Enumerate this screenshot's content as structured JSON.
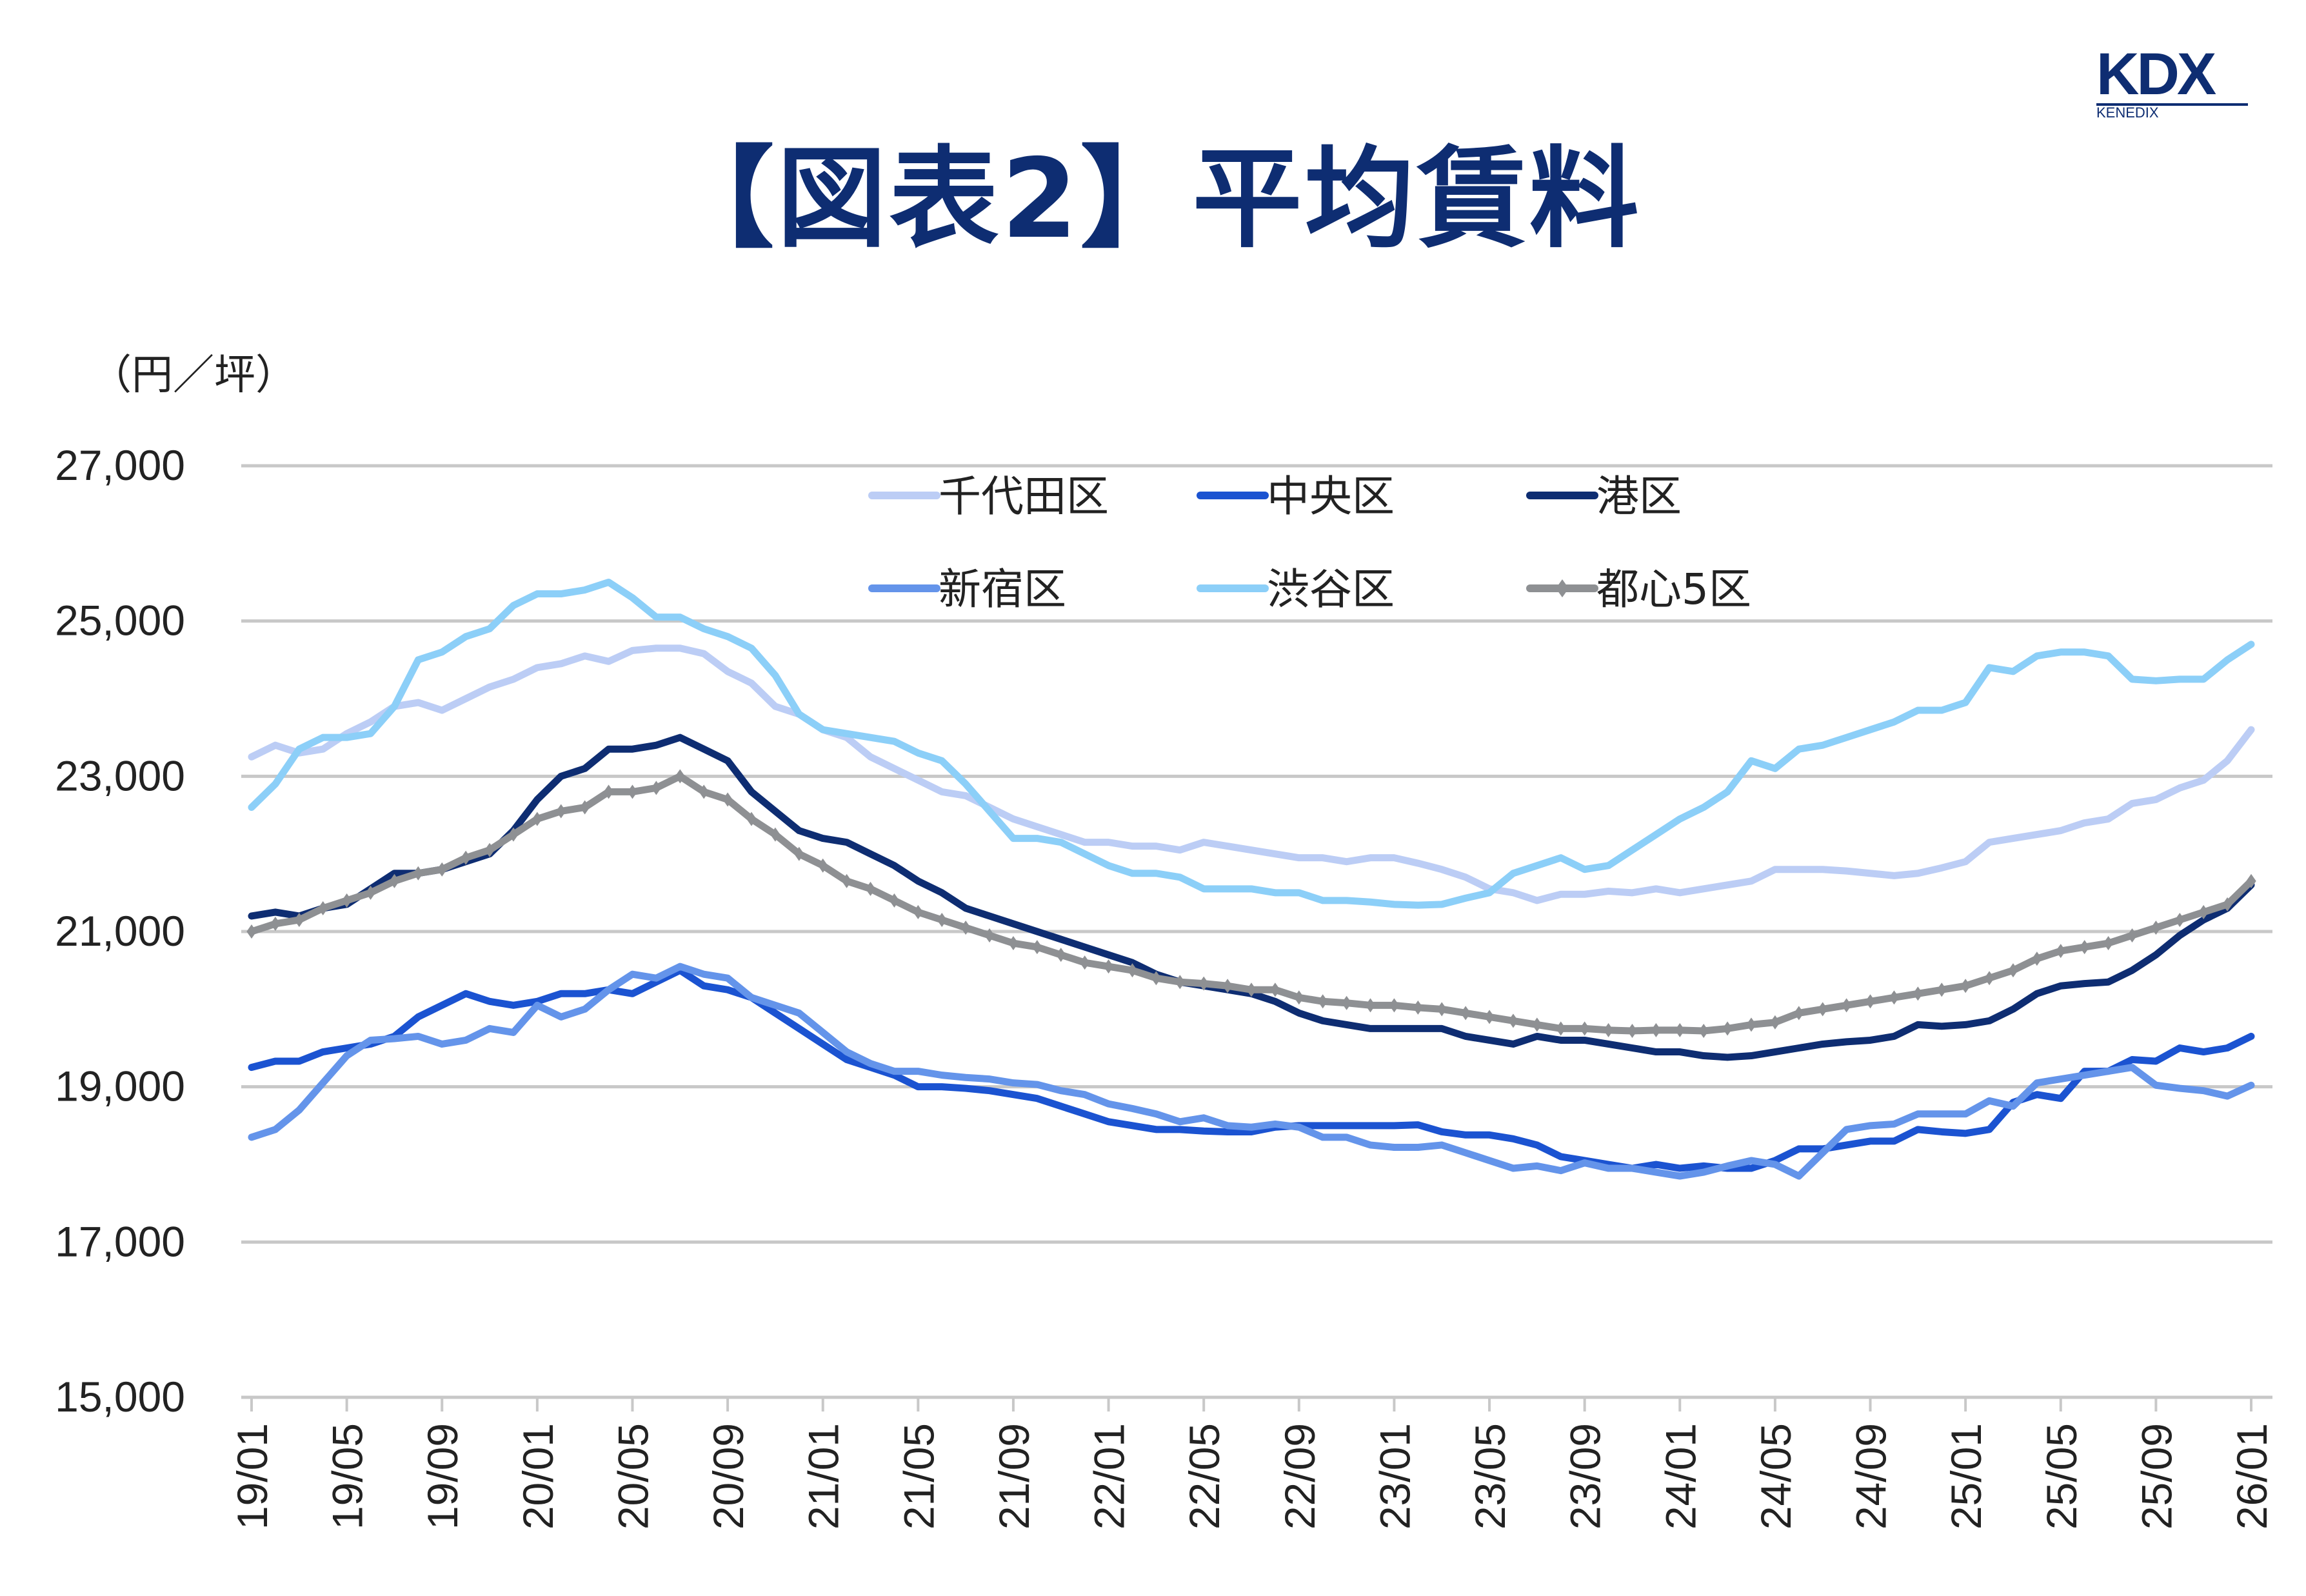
{
  "title": "【図表2】平均賃料",
  "logo": {
    "mark": "KDX",
    "sub": "KENEDIX"
  },
  "chart_data": {
    "type": "line",
    "title": "【図表2】平均賃料",
    "ylabel": "（円／坪）",
    "ylim": [
      15000,
      27000
    ],
    "yticks": [
      "15,000",
      "17,000",
      "19,000",
      "21,000",
      "23,000",
      "25,000",
      "27,000"
    ],
    "ytick_values": [
      15000,
      17000,
      19000,
      21000,
      23000,
      25000,
      27000
    ],
    "xticks": [
      "19/01",
      "19/05",
      "19/09",
      "20/01",
      "20/05",
      "20/09",
      "21/01",
      "21/05",
      "21/09",
      "22/01",
      "22/05",
      "22/09",
      "23/01",
      "23/05",
      "23/09",
      "24/01",
      "24/05",
      "24/09",
      "25/01",
      "25/05",
      "25/09",
      "26/01"
    ],
    "x_range": [
      "2019-01",
      "2026-01"
    ],
    "x_frequency": "monthly",
    "grid": "horizontal",
    "legend_placement": "top-center",
    "series": [
      {
        "name": "千代田区",
        "color": "#bccdf5",
        "marker": "none",
        "values": [
          23250,
          23400,
          23300,
          23350,
          23550,
          23700,
          23900,
          23950,
          23850,
          24000,
          24150,
          24250,
          24400,
          24450,
          24550,
          24480,
          24620,
          24650,
          24650,
          24580,
          24350,
          24200,
          23900,
          23800,
          23600,
          23500,
          23250,
          23100,
          22950,
          22800,
          22750,
          22600,
          22450,
          22350,
          22250,
          22150,
          22150,
          22100,
          22100,
          22050,
          22150,
          22100,
          22050,
          22000,
          21950,
          21950,
          21900,
          21950,
          21950,
          21880,
          21800,
          21700,
          21550,
          21500,
          21400,
          21480,
          21480,
          21520,
          21500,
          21550,
          21500,
          21550,
          21600,
          21650,
          21800,
          21800,
          21800,
          21780,
          21750,
          21720,
          21750,
          21820,
          21900,
          22150,
          22200,
          22250,
          22300,
          22400,
          22450,
          22650,
          22700,
          22850,
          22950,
          23200,
          23600
        ]
      },
      {
        "name": "中央区",
        "color": "#1b53d1",
        "marker": "none",
        "values": [
          19250,
          19330,
          19330,
          19450,
          19500,
          19550,
          19650,
          19900,
          20050,
          20200,
          20100,
          20050,
          20100,
          20200,
          20200,
          20250,
          20200,
          20350,
          20500,
          20300,
          20250,
          20150,
          19950,
          19750,
          19550,
          19350,
          19250,
          19150,
          19000,
          19000,
          18980,
          18950,
          18900,
          18850,
          18750,
          18650,
          18550,
          18500,
          18450,
          18450,
          18430,
          18420,
          18420,
          18480,
          18500,
          18500,
          18500,
          18500,
          18500,
          18510,
          18420,
          18380,
          18380,
          18330,
          18250,
          18100,
          18050,
          18000,
          17950,
          18000,
          17950,
          17980,
          17950,
          17950,
          18050,
          18200,
          18200,
          18250,
          18300,
          18300,
          18450,
          18420,
          18400,
          18450,
          18800,
          18900,
          18850,
          19200,
          19200,
          19350,
          19330,
          19500,
          19450,
          19500,
          19650
        ]
      },
      {
        "name": "港区",
        "color": "#0e2d72",
        "marker": "none",
        "values": [
          21200,
          21250,
          21200,
          21300,
          21350,
          21550,
          21750,
          21750,
          21800,
          21900,
          22000,
          22300,
          22700,
          23000,
          23100,
          23350,
          23350,
          23400,
          23500,
          23350,
          23200,
          22800,
          22550,
          22300,
          22200,
          22150,
          22000,
          21850,
          21650,
          21500,
          21300,
          21200,
          21100,
          21000,
          20900,
          20800,
          20700,
          20600,
          20450,
          20350,
          20300,
          20250,
          20200,
          20100,
          19950,
          19850,
          19800,
          19750,
          19750,
          19750,
          19750,
          19650,
          19600,
          19550,
          19650,
          19600,
          19600,
          19550,
          19500,
          19450,
          19450,
          19400,
          19380,
          19400,
          19450,
          19500,
          19550,
          19580,
          19600,
          19650,
          19800,
          19780,
          19800,
          19850,
          20000,
          20200,
          20300,
          20330,
          20350,
          20500,
          20700,
          20950,
          21150,
          21300,
          21600
        ]
      },
      {
        "name": "新宿区",
        "color": "#6494ea",
        "marker": "none",
        "values": [
          18350,
          18450,
          18700,
          19050,
          19400,
          19600,
          19620,
          19650,
          19550,
          19600,
          19750,
          19700,
          20050,
          19900,
          20000,
          20250,
          20450,
          20400,
          20550,
          20450,
          20400,
          20150,
          20050,
          19950,
          19700,
          19450,
          19300,
          19200,
          19200,
          19150,
          19120,
          19100,
          19050,
          19030,
          18950,
          18900,
          18780,
          18720,
          18650,
          18550,
          18600,
          18500,
          18480,
          18520,
          18480,
          18350,
          18350,
          18250,
          18220,
          18220,
          18250,
          18150,
          18050,
          17950,
          17980,
          17920,
          18020,
          17950,
          17950,
          17900,
          17850,
          17900,
          17980,
          18050,
          18000,
          17850,
          18150,
          18450,
          18500,
          18520,
          18650,
          18650,
          18650,
          18820,
          18750,
          19050,
          19100,
          19150,
          19200,
          19250,
          19020,
          18980,
          18950,
          18880,
          19020
        ]
      },
      {
        "name": "渋谷区",
        "color": "#8ccff8",
        "marker": "none",
        "values": [
          22600,
          22900,
          23350,
          23500,
          23500,
          23550,
          23900,
          24500,
          24600,
          24800,
          24900,
          25200,
          25350,
          25350,
          25400,
          25500,
          25300,
          25050,
          25050,
          24900,
          24800,
          24650,
          24300,
          23800,
          23600,
          23550,
          23500,
          23450,
          23300,
          23200,
          22900,
          22550,
          22200,
          22200,
          22150,
          22000,
          21850,
          21750,
          21750,
          21700,
          21550,
          21550,
          21550,
          21500,
          21500,
          21400,
          21400,
          21380,
          21350,
          21340,
          21350,
          21430,
          21500,
          21750,
          21850,
          21950,
          21800,
          21850,
          22050,
          22250,
          22450,
          22600,
          22800,
          23200,
          23100,
          23350,
          23400,
          23500,
          23600,
          23700,
          23850,
          23850,
          23950,
          24400,
          24350,
          24550,
          24600,
          24600,
          24550,
          24250,
          24230,
          24250,
          24250,
          24500,
          24700
        ]
      },
      {
        "name": "都心5区",
        "color": "#8e9093",
        "marker": "diamond",
        "values": [
          21000,
          21100,
          21150,
          21300,
          21400,
          21500,
          21650,
          21750,
          21800,
          21950,
          22050,
          22250,
          22450,
          22550,
          22600,
          22800,
          22800,
          22850,
          23000,
          22800,
          22700,
          22450,
          22250,
          22000,
          21850,
          21650,
          21550,
          21400,
          21250,
          21150,
          21050,
          20950,
          20850,
          20800,
          20700,
          20600,
          20550,
          20500,
          20400,
          20350,
          20330,
          20300,
          20250,
          20250,
          20150,
          20100,
          20080,
          20050,
          20050,
          20020,
          20000,
          19950,
          19900,
          19850,
          19800,
          19750,
          19750,
          19730,
          19720,
          19730,
          19730,
          19720,
          19750,
          19800,
          19830,
          19950,
          20000,
          20050,
          20100,
          20150,
          20200,
          20250,
          20300,
          20400,
          20500,
          20650,
          20750,
          20800,
          20850,
          20950,
          21050,
          21150,
          21250,
          21350,
          21650
        ]
      }
    ]
  }
}
